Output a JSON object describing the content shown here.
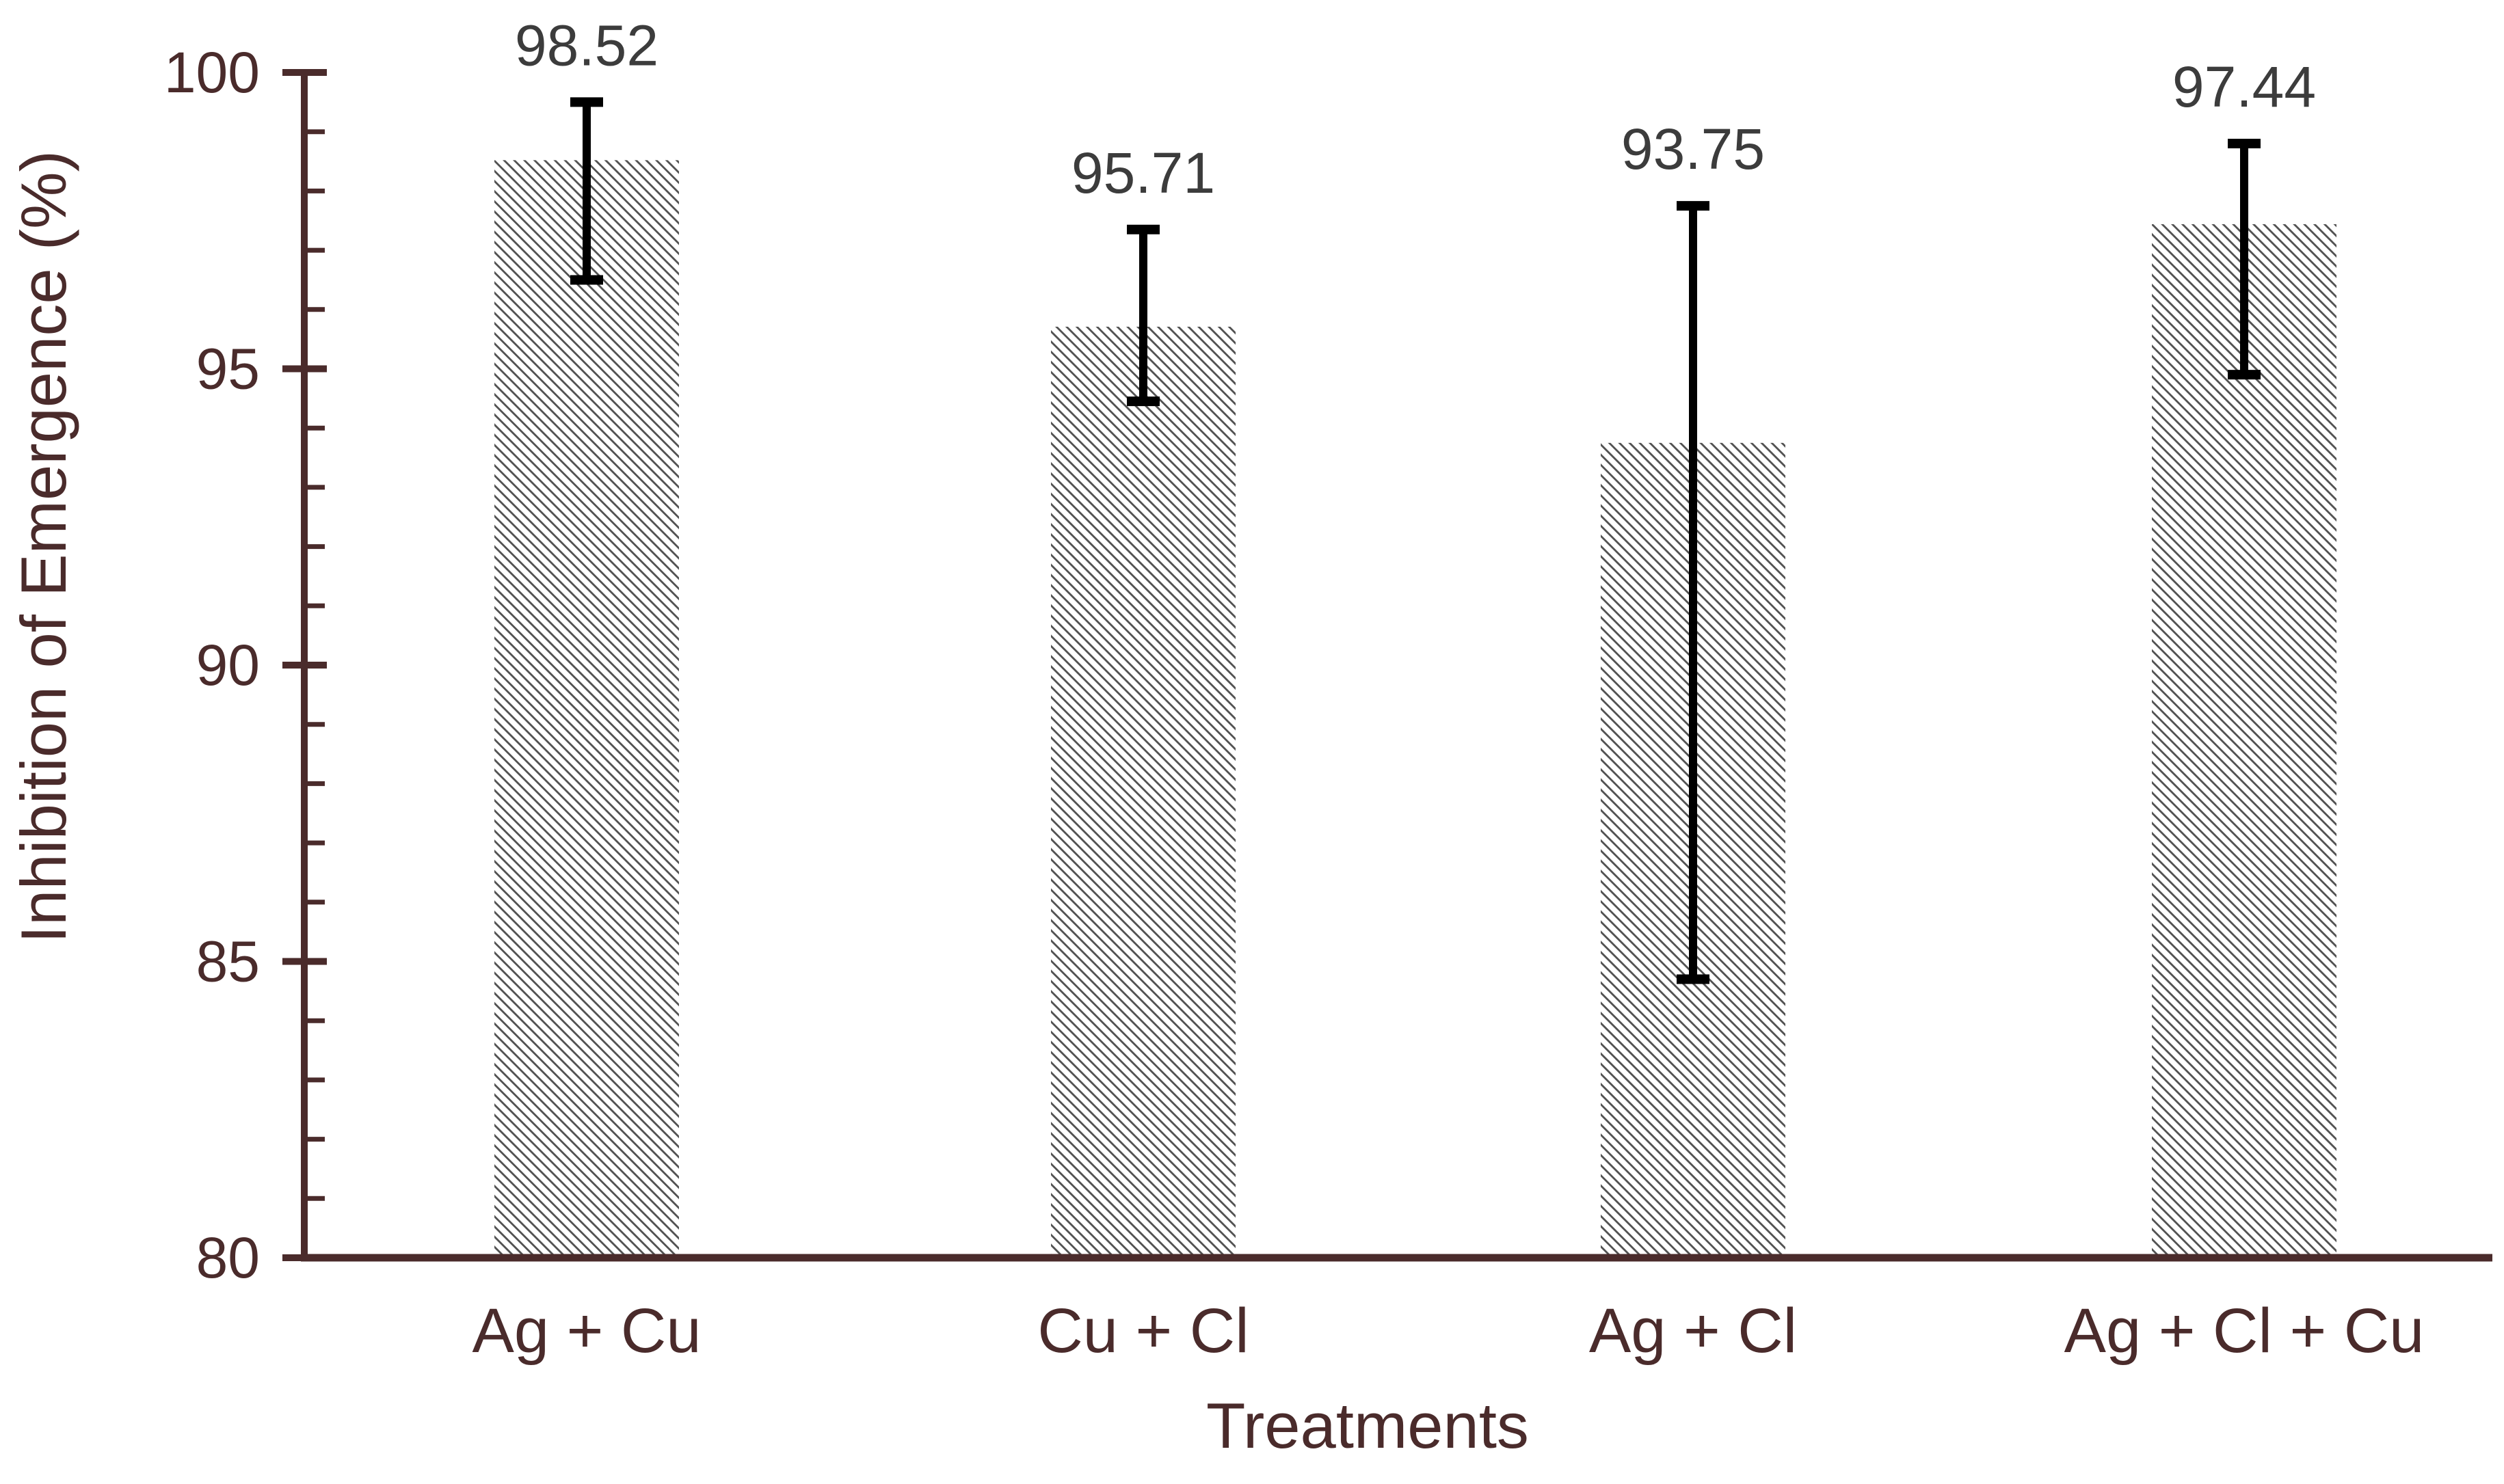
{
  "page": {
    "background": "#ffffff"
  },
  "chart_data": {
    "type": "bar",
    "title": "",
    "xlabel": "Treatments",
    "ylabel": "Inhibition of Emergence (%)",
    "categories": [
      "Ag + Cu",
      "Cu + Cl",
      "Ag + Cl",
      "Ag + Cl + Cu"
    ],
    "values": [
      98.52,
      95.71,
      93.75,
      97.44
    ],
    "value_labels": [
      "98.52",
      "95.71",
      "93.75",
      "97.44"
    ],
    "error_bars": [
      {
        "upper": 99.5,
        "lower": 96.5
      },
      {
        "upper": 97.35,
        "lower": 94.45
      },
      {
        "upper": 97.75,
        "lower": 84.7
      },
      {
        "upper": 98.8,
        "lower": 94.9
      }
    ],
    "y_axis": {
      "min": 80,
      "max": 100,
      "major_ticks": [
        100,
        95,
        90,
        85,
        80
      ],
      "minor_tick_step": 1
    },
    "grid": false,
    "legend": null,
    "bar_style": {
      "fill": "hatch-diagonal",
      "hatch_direction": "\\",
      "hatch_color": "#4f4f4f",
      "background": "#ffffff"
    },
    "colors": {
      "axis": "#4a2b2b",
      "tick_label": "#4a2b2b",
      "category_label": "#4a2b2b",
      "axis_title": "#4a2b2b",
      "value_label": "#3c3c3c",
      "error_bar": "#000000",
      "background": "#ffffff"
    }
  }
}
